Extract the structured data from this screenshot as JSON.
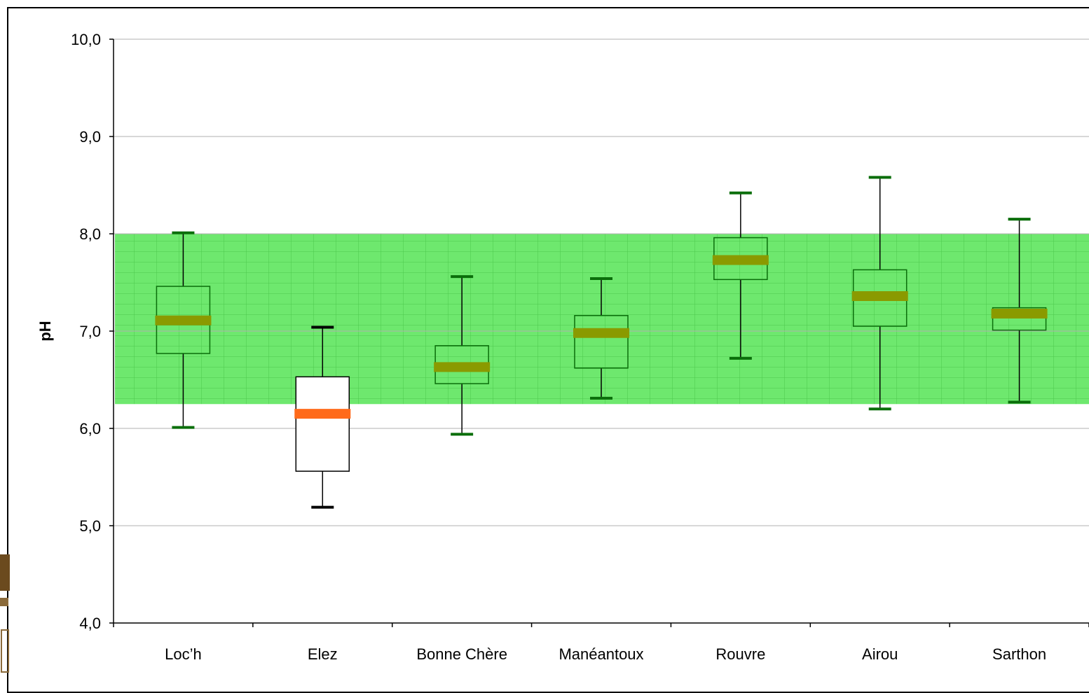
{
  "chart_data": {
    "type": "boxplot",
    "ylabel": "pH",
    "ylim": [
      4.0,
      10.0
    ],
    "yticks": [
      "4,0",
      "5,0",
      "6,0",
      "7,0",
      "8,0",
      "9,0",
      "10,0"
    ],
    "grid": true,
    "reference_band": {
      "low": 6.25,
      "high": 8.0,
      "color": "#6ee86e"
    },
    "categories": [
      "Loc’h",
      "Elez",
      "Bonne Chère",
      "Manéantoux",
      "Rouvre",
      "Airou",
      "Sarthon"
    ],
    "boxes": [
      {
        "name": "Loc’h",
        "min": 6.01,
        "q1": 6.77,
        "median": 7.11,
        "q3": 7.46,
        "max": 8.01,
        "in_band": true
      },
      {
        "name": "Elez",
        "min": 5.19,
        "q1": 5.56,
        "median": 6.15,
        "q3": 6.53,
        "max": 7.04,
        "in_band": false
      },
      {
        "name": "Bonne Chère",
        "min": 5.94,
        "q1": 6.46,
        "median": 6.63,
        "q3": 6.85,
        "max": 7.56,
        "in_band": true
      },
      {
        "name": "Manéantoux",
        "min": 6.31,
        "q1": 6.62,
        "median": 6.98,
        "q3": 7.16,
        "max": 7.54,
        "in_band": true
      },
      {
        "name": "Rouvre",
        "min": 6.72,
        "q1": 7.53,
        "median": 7.73,
        "q3": 7.96,
        "max": 8.42,
        "in_band": true
      },
      {
        "name": "Airou",
        "min": 6.2,
        "q1": 7.05,
        "median": 7.36,
        "q3": 7.63,
        "max": 8.58,
        "in_band": true
      },
      {
        "name": "Sarthon",
        "min": 6.27,
        "q1": 7.01,
        "median": 7.18,
        "q3": 7.24,
        "max": 8.15,
        "in_band": true
      }
    ],
    "colors": {
      "median_in_band": "#8a9a00",
      "median_out_band": "#ff6a1a",
      "box_in_band": "#0a6e0a",
      "box_out_band": "#000000",
      "gridline": "#b0b0b0"
    }
  }
}
